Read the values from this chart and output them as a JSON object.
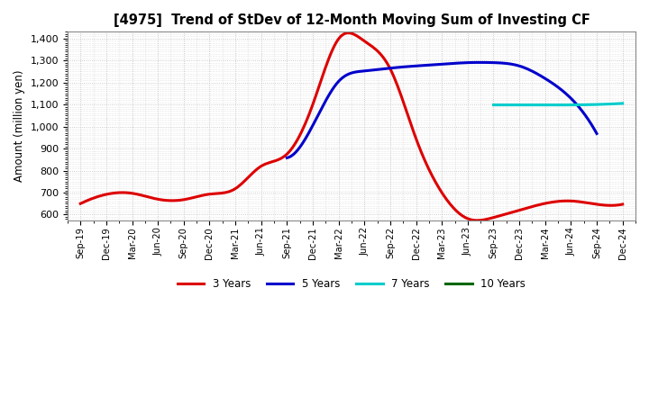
{
  "title": "[4975]  Trend of StDev of 12-Month Moving Sum of Investing CF",
  "ylabel": "Amount (million yen)",
  "background_color": "#ffffff",
  "plot_bg_color": "#ffffff",
  "grid_color": "#aaaaaa",
  "ylim": [
    575,
    1430
  ],
  "yticks": [
    600,
    700,
    800,
    900,
    1000,
    1100,
    1200,
    1300,
    1400
  ],
  "x_labels": [
    "Sep-19",
    "Dec-19",
    "Mar-20",
    "Jun-20",
    "Sep-20",
    "Dec-20",
    "Mar-21",
    "Jun-21",
    "Sep-21",
    "Dec-21",
    "Mar-22",
    "Jun-22",
    "Sep-22",
    "Dec-22",
    "Mar-23",
    "Jun-23",
    "Sep-23",
    "Dec-23",
    "Mar-24",
    "Jun-24",
    "Sep-24",
    "Dec-24"
  ],
  "series_3y": {
    "color": "#dd0000",
    "label": "3 Years",
    "values": [
      650,
      692,
      697,
      670,
      668,
      693,
      718,
      820,
      875,
      1100,
      1398,
      1388,
      1262,
      945,
      700,
      582,
      587,
      620,
      651,
      662,
      647,
      647
    ]
  },
  "series_5y": {
    "color": "#0000cc",
    "label": "5 Years",
    "values": [
      null,
      null,
      null,
      null,
      null,
      null,
      null,
      null,
      858,
      1005,
      1205,
      1252,
      1265,
      1275,
      1283,
      1290,
      1290,
      1275,
      1218,
      1128,
      968,
      null
    ]
  },
  "series_7y": {
    "color": "#00cccc",
    "label": "7 Years",
    "values": [
      null,
      null,
      null,
      null,
      null,
      null,
      null,
      null,
      null,
      null,
      null,
      null,
      null,
      null,
      null,
      null,
      1098,
      1098,
      1098,
      1098,
      1100,
      1105
    ]
  },
  "series_10y": {
    "color": "#006600",
    "label": "10 Years",
    "values": [
      null,
      null,
      null,
      null,
      null,
      null,
      null,
      null,
      null,
      null,
      null,
      null,
      null,
      null,
      null,
      null,
      null,
      null,
      null,
      null,
      null,
      null
    ]
  },
  "linewidth": 2.2
}
